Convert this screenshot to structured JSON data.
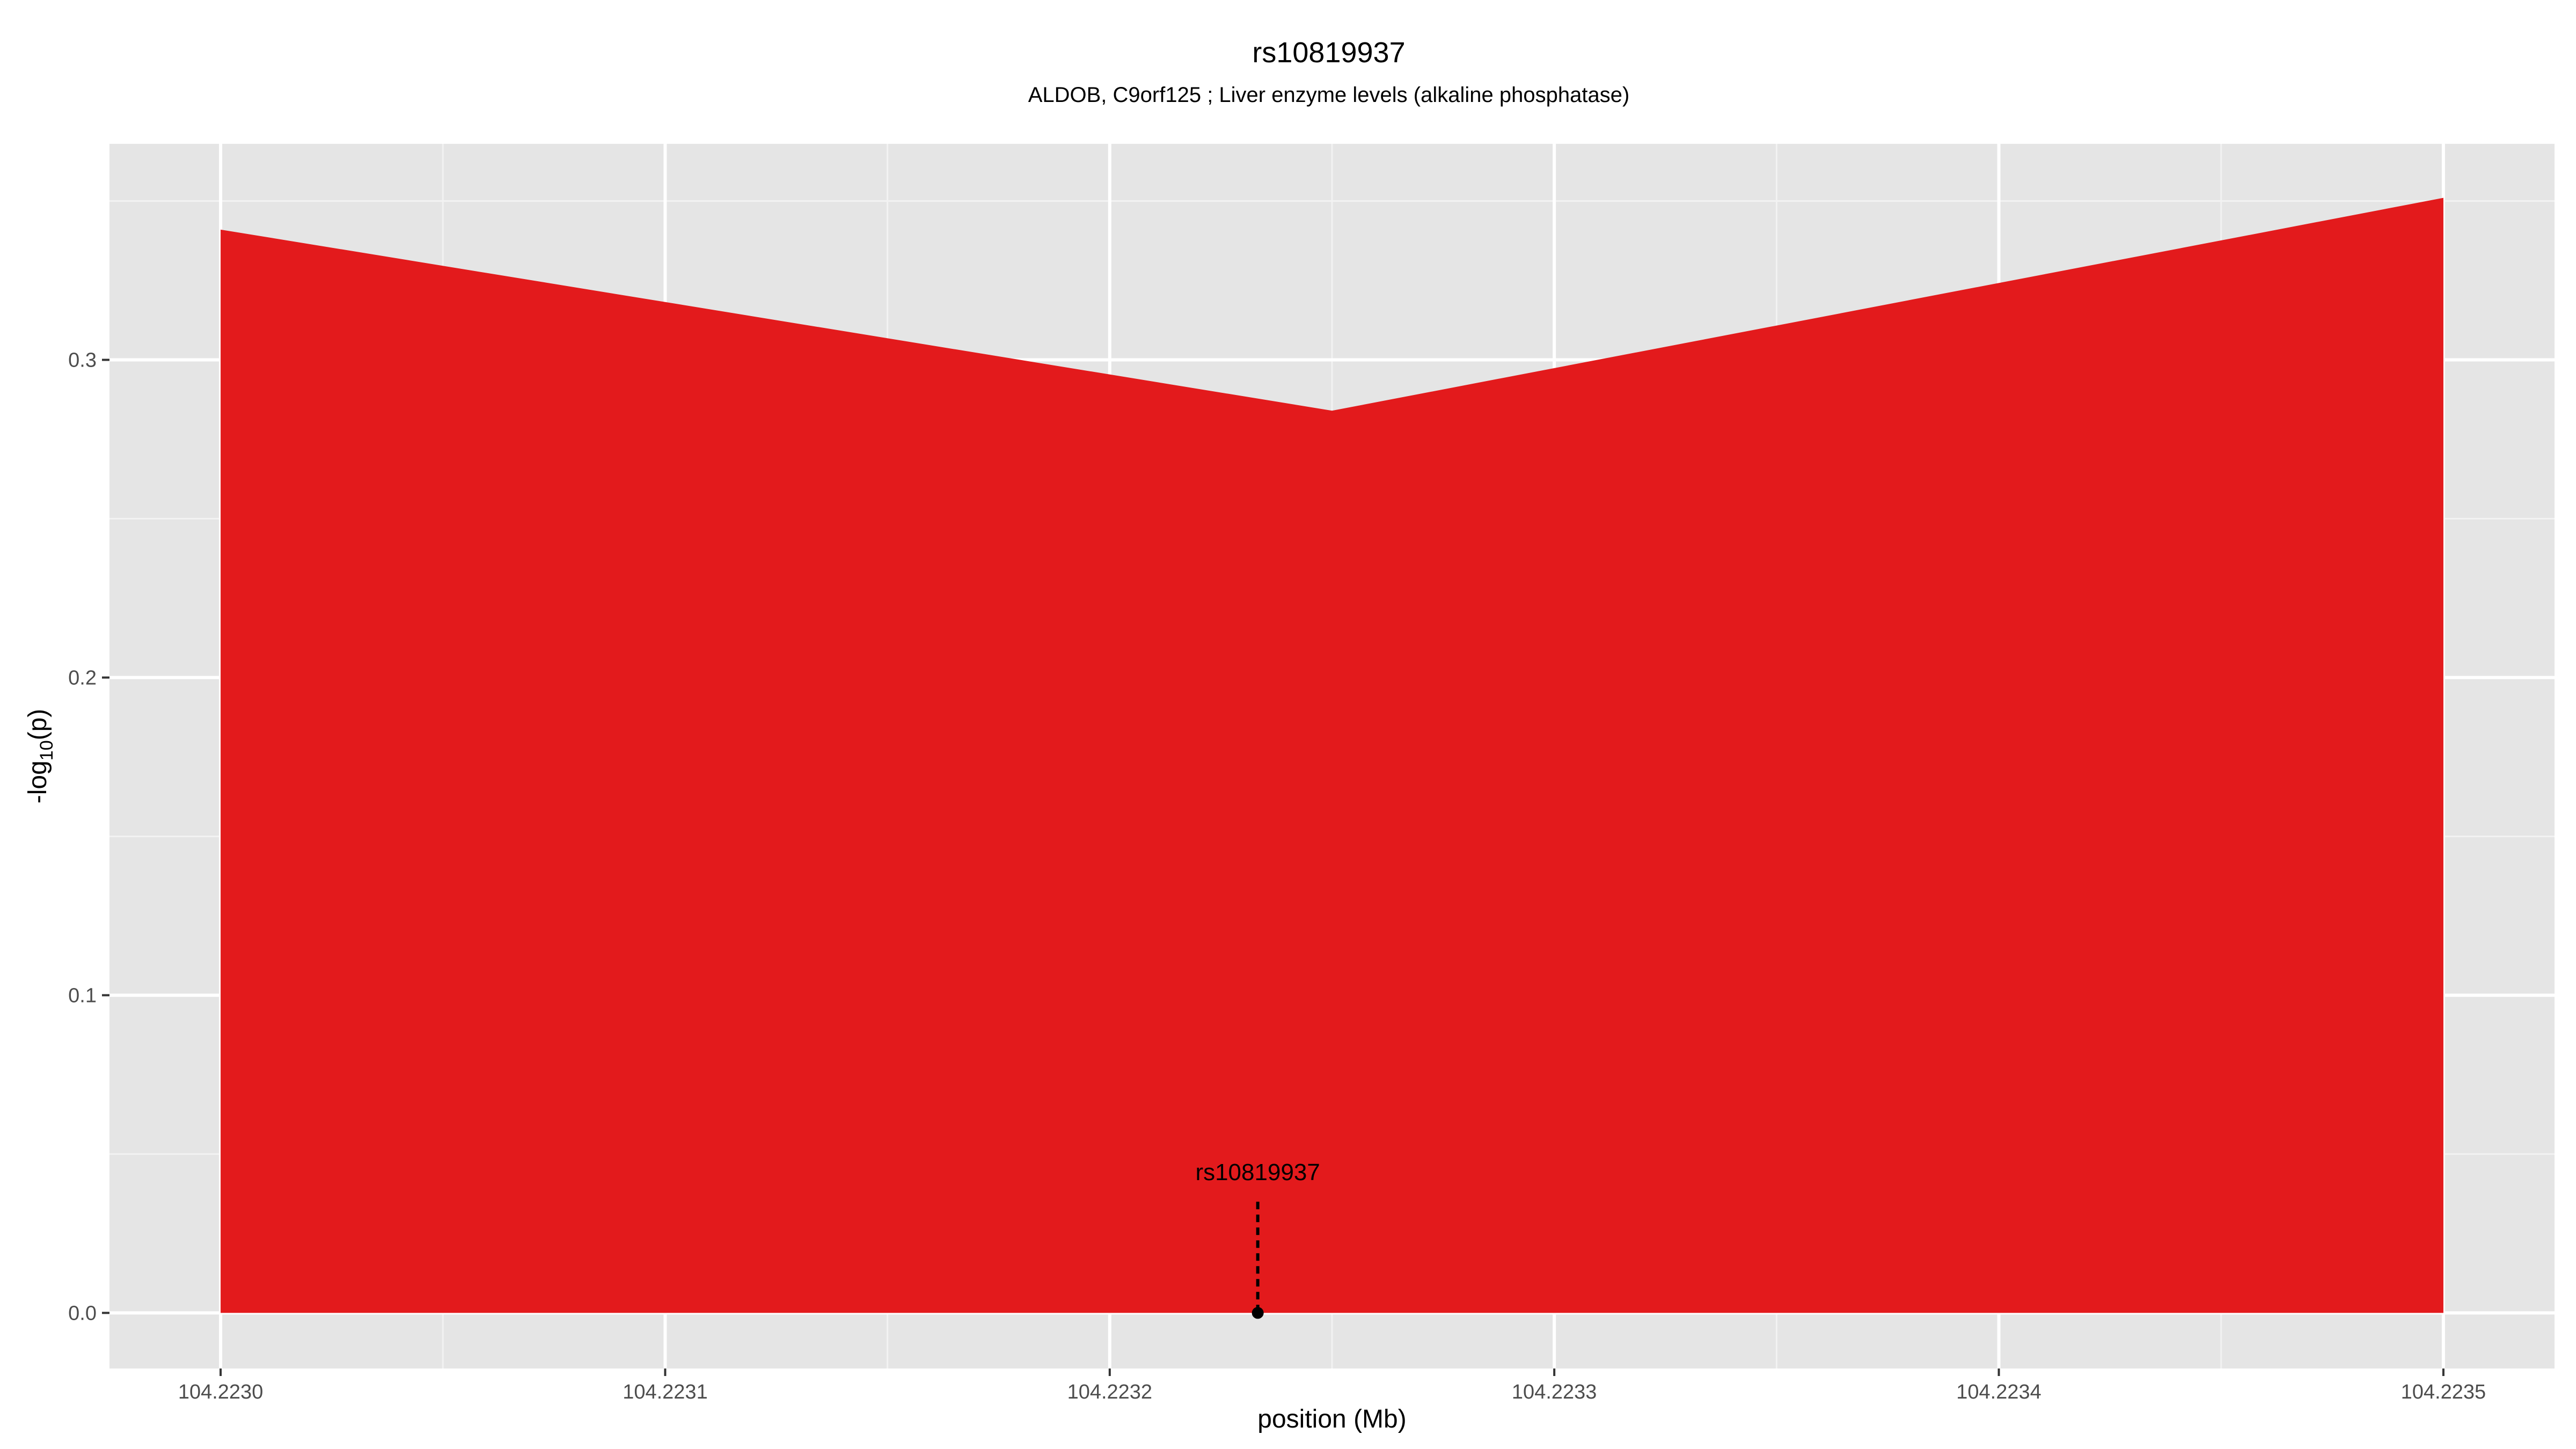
{
  "chart_data": {
    "type": "area",
    "title": "rs10819937",
    "subtitle": "ALDOB, C9orf125 ; Liver enzyme levels (alkaline phosphatase)",
    "xlabel": "position (Mb)",
    "ylabel_main": "-log",
    "ylabel_sub": "10",
    "ylabel_tail": "(p)",
    "xlim": [
      104.222975,
      104.223525
    ],
    "ylim": [
      -0.0175,
      0.368
    ],
    "x_ticks": [
      104.223,
      104.2231,
      104.2232,
      104.2233,
      104.2234,
      104.2235
    ],
    "x_tick_labels": [
      "104.2230",
      "104.2231",
      "104.2232",
      "104.2233",
      "104.2234",
      "104.2235"
    ],
    "y_ticks": [
      0,
      0.1,
      0.2,
      0.3
    ],
    "y_tick_labels": [
      "0.0",
      "0.1",
      "0.2",
      "0.3"
    ],
    "grid": true,
    "series": [
      {
        "x": [
          104.223,
          104.22325,
          104.2235
        ],
        "y": [
          0.341,
          0.284,
          0.351
        ],
        "color": "#e31a1c"
      }
    ],
    "annotation": {
      "label": "rs10819937",
      "x": 104.2232333,
      "y": 0,
      "line_top_y": 0.035
    },
    "colors": {
      "panel": "#e5e5e5",
      "grid_major": "#ffffff",
      "grid_minor": "#f2f2f2",
      "fill": "#e31a1c"
    }
  }
}
